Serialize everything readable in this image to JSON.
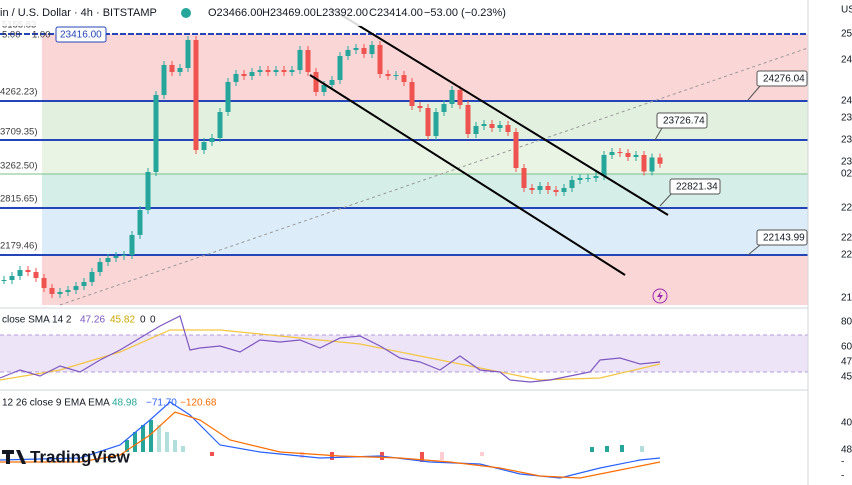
{
  "header": {
    "symbol": "in / U.S. Dollar · 4h · BITSTAMP",
    "open": "O23466.00",
    "high": "H23469.00",
    "low": "L23392.00",
    "close": "C23414.00",
    "change": "−53.00 (−0.23%)"
  },
  "price_chart": {
    "ylim": [
      21507.5,
      25625
    ],
    "closes": [
      21845,
      21899,
      21980,
      21953,
      21872,
      21737,
      21656,
      21683,
      21710,
      21764,
      21818,
      21953,
      22088,
      22142,
      22169,
      22183,
      22453,
      22790,
      23303,
      24343,
      24748,
      24653,
      24707,
      25085,
      23600,
      23708,
      23762,
      24113,
      24518,
      24626,
      24599,
      24653,
      24680,
      24653,
      24680,
      24653,
      24680,
      24950,
      24653,
      24383,
      24478,
      24545,
      24869,
      24950,
      24977,
      24896,
      25018,
      24626,
      24599,
      24612,
      24518,
      24194,
      24167,
      23789,
      24113,
      24221,
      24410,
      24208,
      23816,
      23924,
      23951,
      23897,
      23937,
      23843,
      23357,
      23087,
      23060,
      23114,
      23060,
      23033,
      23087,
      23195,
      23222,
      23222,
      23249,
      23533,
      23573,
      23560,
      23506,
      23533,
      23310,
      23499,
      23414
    ],
    "level_labels": [
      "5155.83",
      "5.00",
      "1.00",
      "23416.00",
      "4262.23)",
      "3709.35)",
      "3262.50)",
      "2815.65)",
      "2179.46)"
    ],
    "callouts": [
      "24276.04",
      "23726.74",
      "22821.34",
      "22143.99"
    ]
  },
  "rsi": {
    "label": "close SMA 14 2",
    "values_text": [
      "47.26",
      "45.82",
      "0",
      "0"
    ]
  },
  "macd": {
    "label": "12 26 close 9 EMA EMA",
    "values_text": [
      "48.98",
      "−71.70",
      "−120.68"
    ]
  },
  "right_axis": [
    "US",
    "25",
    "24",
    "24",
    "23",
    "23",
    "23",
    "02",
    "22",
    "22",
    "22",
    "21",
    "80",
    "60",
    "47",
    "45",
    "40",
    "48",
    "-",
    "-"
  ],
  "brand": "TradingView"
}
